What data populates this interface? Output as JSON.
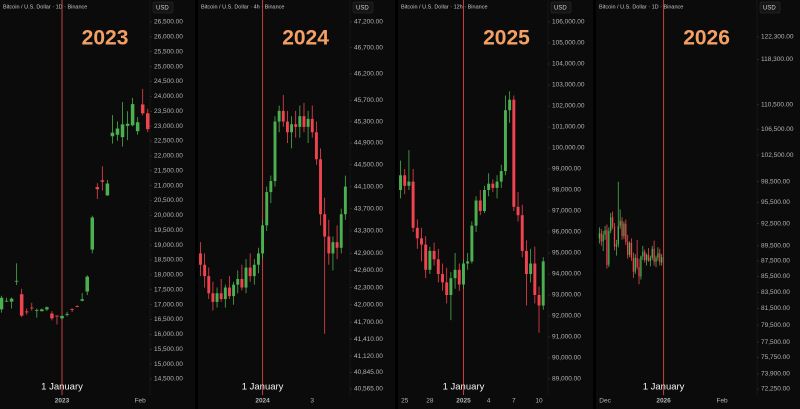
{
  "chart_data": [
    {
      "type": "candlestick",
      "header": "Bitcoin / U.S. Dollar · 1D · Binance",
      "title": "2023",
      "currency": "USD",
      "annotation": {
        "text": "1 January",
        "x": 0
      },
      "log": false,
      "up_color": "#4caf50",
      "down_color": "#ef4350",
      "xlim": [
        -24.6,
        34.9
      ],
      "xticks": [
        {
          "value": 0,
          "label": "2023"
        },
        {
          "value": 31,
          "label": "Feb"
        }
      ],
      "ylim": [
        14063,
        26769
      ],
      "yticks": [
        {
          "value": 26500,
          "label": "26,500.00"
        },
        {
          "value": 26000,
          "label": "26,000.00"
        },
        {
          "value": 25500,
          "label": "25,500.00"
        },
        {
          "value": 25000,
          "label": "25,000.00"
        },
        {
          "value": 24500,
          "label": "24,500.00"
        },
        {
          "value": 24000,
          "label": "24,000.00"
        },
        {
          "value": 23500,
          "label": "23,500.00"
        },
        {
          "value": 23000,
          "label": "23,000.00"
        },
        {
          "value": 22500,
          "label": "22,500.00"
        },
        {
          "value": 22000,
          "label": "22,000.00"
        },
        {
          "value": 21500,
          "label": "21,500.00"
        },
        {
          "value": 21000,
          "label": "21,000.00"
        },
        {
          "value": 20500,
          "label": "20,500.00"
        },
        {
          "value": 20000,
          "label": "20,000.00"
        },
        {
          "value": 19500,
          "label": "19,500.00"
        },
        {
          "value": 19000,
          "label": "19,000.00"
        },
        {
          "value": 18500,
          "label": "18,500.00"
        },
        {
          "value": 18000,
          "label": "18,000.00"
        },
        {
          "value": 17500,
          "label": "17,500.00"
        },
        {
          "value": 17000,
          "label": "17,000.00"
        },
        {
          "value": 16500,
          "label": "16,500.00"
        },
        {
          "value": 16000,
          "label": "16,000.00"
        },
        {
          "value": 15500,
          "label": "15,500.00"
        },
        {
          "value": 15000,
          "label": "15,000.00"
        },
        {
          "value": 14500,
          "label": "14,500.00"
        }
      ],
      "x": [
        -24,
        -22,
        -20,
        -18,
        -16,
        -14,
        -12,
        -10,
        -8,
        -6,
        -4,
        -2,
        0,
        2,
        4,
        6,
        8,
        10,
        12,
        14,
        16,
        18,
        20,
        22,
        24,
        26,
        28,
        30,
        32,
        34
      ],
      "open": [
        16840,
        17130,
        17100,
        17780,
        17350,
        16770,
        16900,
        16820,
        16780,
        16840,
        16700,
        16630,
        16540,
        16670,
        16850,
        16950,
        17130,
        17440,
        18850,
        20950,
        21180,
        20670,
        22660,
        22710,
        22630,
        23010,
        23030,
        22830,
        23730,
        23430
      ],
      "high": [
        17300,
        17230,
        17240,
        18390,
        17530,
        16870,
        17060,
        16870,
        16870,
        16940,
        16780,
        16640,
        16630,
        16760,
        16880,
        16980,
        17390,
        17990,
        19990,
        21080,
        21650,
        21190,
        23370,
        23160,
        23810,
        23500,
        23950,
        23300,
        24250,
        23580
      ],
      "low": [
        16730,
        17090,
        16870,
        17660,
        16580,
        16660,
        16800,
        16560,
        16770,
        16790,
        16470,
        16330,
        16500,
        16600,
        16750,
        16910,
        17110,
        17320,
        18720,
        20550,
        20840,
        20660,
        22410,
        22510,
        22310,
        22530,
        22990,
        22710,
        23360,
        22800
      ],
      "close": [
        17230,
        17130,
        17200,
        17800,
        16630,
        16740,
        16890,
        16820,
        16840,
        16910,
        16540,
        16600,
        16620,
        16680,
        16830,
        16940,
        17180,
        17940,
        19930,
        20880,
        21130,
        21070,
        22780,
        22920,
        23060,
        23080,
        23740,
        23130,
        23430,
        22900
      ]
    },
    {
      "type": "candlestick",
      "header": "Bitcoin / U.S. Dollar · 4h · Binance",
      "title": "2024",
      "currency": "USD",
      "annotation": {
        "text": "1 January",
        "x": 0
      },
      "log": true,
      "up_color": "#4caf50",
      "down_color": "#ef4350",
      "xlim": [
        -2.6,
        3.52
      ],
      "xticks": [
        {
          "value": 0,
          "label": "2024"
        },
        {
          "value": 2,
          "label": "3"
        }
      ],
      "ylim": [
        40515,
        47356
      ],
      "yticks": [
        {
          "value": 47200,
          "label": "47,200.00"
        },
        {
          "value": 46700,
          "label": "46,700.00"
        },
        {
          "value": 46200,
          "label": "46,200.00"
        },
        {
          "value": 45700,
          "label": "45,700.00"
        },
        {
          "value": 45300,
          "label": "45,300.00"
        },
        {
          "value": 44900,
          "label": "44,900.00"
        },
        {
          "value": 44500,
          "label": "44,500.00"
        },
        {
          "value": 44100,
          "label": "44,100.00"
        },
        {
          "value": 43700,
          "label": "43,700.00"
        },
        {
          "value": 43300,
          "label": "43,300.00"
        },
        {
          "value": 42900,
          "label": "42,900.00"
        },
        {
          "value": 42600,
          "label": "42,600.00"
        },
        {
          "value": 42300,
          "label": "42,300.00"
        },
        {
          "value": 42000,
          "label": "42,000.00"
        },
        {
          "value": 41700,
          "label": "41,700.00"
        },
        {
          "value": 41410,
          "label": "41,410.00"
        },
        {
          "value": 41120,
          "label": "41,120.00"
        },
        {
          "value": 40845,
          "label": "40,845.00"
        },
        {
          "value": 40565,
          "label": "40,565.00"
        }
      ],
      "x": [
        -2.5,
        -2.333,
        -2.167,
        -2,
        -1.833,
        -1.667,
        -1.5,
        -1.333,
        -1.167,
        -1,
        -0.833,
        -0.667,
        -0.5,
        -0.333,
        -0.167,
        0,
        0.167,
        0.333,
        0.5,
        0.667,
        0.833,
        1,
        1.167,
        1.333,
        1.5,
        1.667,
        1.833,
        2,
        2.167,
        2.333,
        2.5,
        2.667,
        2.833,
        3,
        3.167,
        3.333
      ],
      "open": [
        42900,
        42700,
        42500,
        42200,
        42050,
        42200,
        42100,
        42300,
        42150,
        42350,
        42450,
        42300,
        42650,
        42500,
        42700,
        42900,
        43400,
        44000,
        44200,
        45300,
        45500,
        45300,
        45100,
        45250,
        45200,
        45400,
        45200,
        45350,
        45100,
        44600,
        43600,
        43200,
        42900,
        43100,
        43000,
        43600
      ],
      "high": [
        43100,
        42900,
        42650,
        42400,
        42300,
        42450,
        42350,
        42500,
        42400,
        42600,
        42700,
        42800,
        42900,
        42800,
        43000,
        43500,
        44100,
        44300,
        45400,
        45600,
        45800,
        45500,
        45400,
        45500,
        45600,
        45650,
        45500,
        45600,
        45300,
        44800,
        43900,
        43500,
        43200,
        43400,
        43700,
        44300
      ],
      "low": [
        42500,
        42300,
        42100,
        41900,
        41950,
        42050,
        41950,
        42100,
        42000,
        42200,
        42250,
        42200,
        42400,
        42350,
        42550,
        42800,
        43300,
        43800,
        44100,
        45100,
        45200,
        44900,
        44800,
        45000,
        45000,
        45100,
        44900,
        45000,
        44500,
        43400,
        41500,
        42700,
        42600,
        42800,
        42900,
        43500
      ],
      "close": [
        42700,
        42500,
        42200,
        42050,
        42200,
        42100,
        42300,
        42150,
        42350,
        42450,
        42300,
        42650,
        42500,
        42700,
        42900,
        43400,
        44000,
        44200,
        45300,
        45500,
        45300,
        45100,
        45250,
        45200,
        45400,
        45200,
        45350,
        45100,
        44600,
        43600,
        43200,
        42900,
        43100,
        43000,
        43600,
        44100
      ]
    },
    {
      "type": "candlestick",
      "header": "Bitcoin / U.S. Dollar · 12h · Binance",
      "title": "2025",
      "currency": "USD",
      "annotation": {
        "text": "1 January",
        "x": 0
      },
      "log": false,
      "up_color": "#4caf50",
      "down_color": "#ef4350",
      "xlim": [
        -7.8,
        10.07
      ],
      "xticks": [
        {
          "value": -7,
          "label": "25"
        },
        {
          "value": -4,
          "label": "28"
        },
        {
          "value": 0,
          "label": "2025"
        },
        {
          "value": 3,
          "label": "4"
        },
        {
          "value": 6,
          "label": "7"
        },
        {
          "value": 9,
          "label": "10"
        }
      ],
      "ylim": [
        88381,
        106381
      ],
      "yticks": [
        {
          "value": 106000,
          "label": "106,000.00"
        },
        {
          "value": 105000,
          "label": "105,000.00"
        },
        {
          "value": 104000,
          "label": "104,000.00"
        },
        {
          "value": 103000,
          "label": "103,000.00"
        },
        {
          "value": 102000,
          "label": "102,000.00"
        },
        {
          "value": 101000,
          "label": "101,000.00"
        },
        {
          "value": 100000,
          "label": "100,000.00"
        },
        {
          "value": 99000,
          "label": "99,000.00"
        },
        {
          "value": 98000,
          "label": "98,000.00"
        },
        {
          "value": 97000,
          "label": "97,000.00"
        },
        {
          "value": 96000,
          "label": "96,000.00"
        },
        {
          "value": 95000,
          "label": "95,000.00"
        },
        {
          "value": 94000,
          "label": "94,000.00"
        },
        {
          "value": 93000,
          "label": "93,000.00"
        },
        {
          "value": 92000,
          "label": "92,000.00"
        },
        {
          "value": 91000,
          "label": "91,000.00"
        },
        {
          "value": 90000,
          "label": "90,000.00"
        },
        {
          "value": 89000,
          "label": "89,000.00"
        }
      ],
      "x": [
        -7.5,
        -7,
        -6.5,
        -6,
        -5.5,
        -5,
        -4.5,
        -4,
        -3.5,
        -3,
        -2.5,
        -2,
        -1.5,
        -1,
        -0.5,
        0,
        0.5,
        1,
        1.5,
        2,
        2.5,
        3,
        3.5,
        4,
        4.5,
        5,
        5.5,
        6,
        6.5,
        7,
        7.5,
        8,
        8.5,
        9,
        9.5
      ],
      "open": [
        98000,
        98700,
        98200,
        98400,
        96200,
        95700,
        95400,
        94200,
        95100,
        94700,
        94000,
        93600,
        93000,
        93800,
        94200,
        93500,
        94500,
        94600,
        96300,
        97500,
        97000,
        98000,
        98300,
        98100,
        98400,
        98900,
        101800,
        102300,
        97200,
        96800,
        95100,
        94000,
        94500,
        93000,
        92500
      ],
      "high": [
        99400,
        99000,
        99900,
        99000,
        96600,
        96200,
        95800,
        95300,
        95500,
        95200,
        94500,
        94300,
        94100,
        95000,
        94500,
        94700,
        95000,
        96500,
        97700,
        98000,
        98200,
        98800,
        98500,
        98700,
        99200,
        102500,
        102700,
        102500,
        97900,
        97300,
        95600,
        95200,
        95300,
        93400,
        94800
      ],
      "low": [
        97600,
        97800,
        98000,
        96000,
        95200,
        94600,
        93800,
        94000,
        94400,
        93600,
        93200,
        92600,
        91800,
        93300,
        93200,
        93300,
        94200,
        94500,
        96000,
        96800,
        96900,
        97700,
        97900,
        97600,
        98100,
        98700,
        101200,
        97000,
        96500,
        94800,
        92500,
        93600,
        92600,
        91200,
        92300
      ],
      "close": [
        98700,
        98200,
        98400,
        96200,
        95700,
        95400,
        94200,
        95100,
        94700,
        94000,
        93600,
        93000,
        93800,
        94200,
        93500,
        94500,
        94600,
        96300,
        97500,
        97000,
        98000,
        98300,
        98100,
        98400,
        98900,
        101800,
        102300,
        97200,
        96800,
        95100,
        94000,
        94500,
        93000,
        92500,
        94600
      ]
    },
    {
      "type": "candlestick",
      "header": "Bitcoin / U.S. Dollar · 1D · Binance",
      "title": "2026",
      "currency": "USD",
      "annotation": {
        "text": "1 January",
        "x": 0
      },
      "log": true,
      "up_color": "#4caf50",
      "down_color": "#ef4350",
      "xlim": [
        -35.8,
        49.5
      ],
      "xticks": [
        {
          "value": -31,
          "label": "Dec"
        },
        {
          "value": 0,
          "label": "2026"
        },
        {
          "value": 31,
          "label": "Feb"
        }
      ],
      "ylim": [
        71930,
        126570
      ],
      "yticks": [
        {
          "value": 122300,
          "label": "122,300.00"
        },
        {
          "value": 118300,
          "label": "118,300.00"
        },
        {
          "value": 110500,
          "label": "110,500.00"
        },
        {
          "value": 106500,
          "label": "106,500.00"
        },
        {
          "value": 102500,
          "label": "102,500.00"
        },
        {
          "value": 98500,
          "label": "98,500.00"
        },
        {
          "value": 95500,
          "label": "95,500.00"
        },
        {
          "value": 92500,
          "label": "92,500.00"
        },
        {
          "value": 89500,
          "label": "89,500.00"
        },
        {
          "value": 87500,
          "label": "87,500.00"
        },
        {
          "value": 85500,
          "label": "85,500.00"
        },
        {
          "value": 83500,
          "label": "83,500.00"
        },
        {
          "value": 81500,
          "label": "81,500.00"
        },
        {
          "value": 79500,
          "label": "79,500.00"
        },
        {
          "value": 77500,
          "label": "77,500.00"
        },
        {
          "value": 75750,
          "label": "75,750.00"
        },
        {
          "value": 73900,
          "label": "73,900.00"
        },
        {
          "value": 72250,
          "label": "72,250.00"
        }
      ],
      "x": [
        -34,
        -33,
        -32,
        -31,
        -30,
        -29,
        -28,
        -27,
        -26,
        -25,
        -24,
        -23,
        -22,
        -21,
        -20,
        -19,
        -18,
        -17,
        -16,
        -15,
        -14,
        -13,
        -12,
        -11,
        -10,
        -9,
        -8,
        -7,
        -6,
        -5,
        -4,
        -3,
        -2,
        -1
      ],
      "open": [
        90500,
        91200,
        90100,
        91000,
        91600,
        87000,
        91500,
        93400,
        92100,
        89400,
        89700,
        92200,
        92900,
        90800,
        92500,
        90000,
        88300,
        89900,
        87900,
        86100,
        87900,
        86700,
        85500,
        88100,
        88700,
        87600,
        88300,
        87500,
        87900,
        89100,
        87400,
        87900,
        88500,
        87300
      ],
      "high": [
        92000,
        91800,
        91500,
        92200,
        92400,
        92000,
        94000,
        94200,
        92600,
        90300,
        98500,
        94500,
        93400,
        92800,
        93100,
        91000,
        90100,
        90500,
        88600,
        88400,
        90300,
        87800,
        88200,
        89500,
        89000,
        88500,
        89200,
        88200,
        89500,
        90200,
        88200,
        89300,
        89100,
        88400
      ],
      "low": [
        89800,
        89500,
        88800,
        90300,
        86500,
        86700,
        91200,
        91800,
        88900,
        88200,
        89300,
        91800,
        90300,
        90400,
        89600,
        87800,
        88000,
        87500,
        85300,
        85800,
        86400,
        84500,
        85100,
        87600,
        87300,
        86900,
        87400,
        86800,
        87600,
        86900,
        86700,
        87500,
        86900,
        86900
      ],
      "close": [
        91200,
        90100,
        91000,
        91600,
        87000,
        91500,
        93400,
        92100,
        89400,
        89700,
        92200,
        92900,
        90800,
        92500,
        90000,
        88300,
        89900,
        87900,
        86100,
        87900,
        86700,
        85500,
        88100,
        88700,
        87600,
        88300,
        87500,
        87900,
        89100,
        87400,
        87900,
        88500,
        87300,
        88000
      ]
    }
  ]
}
